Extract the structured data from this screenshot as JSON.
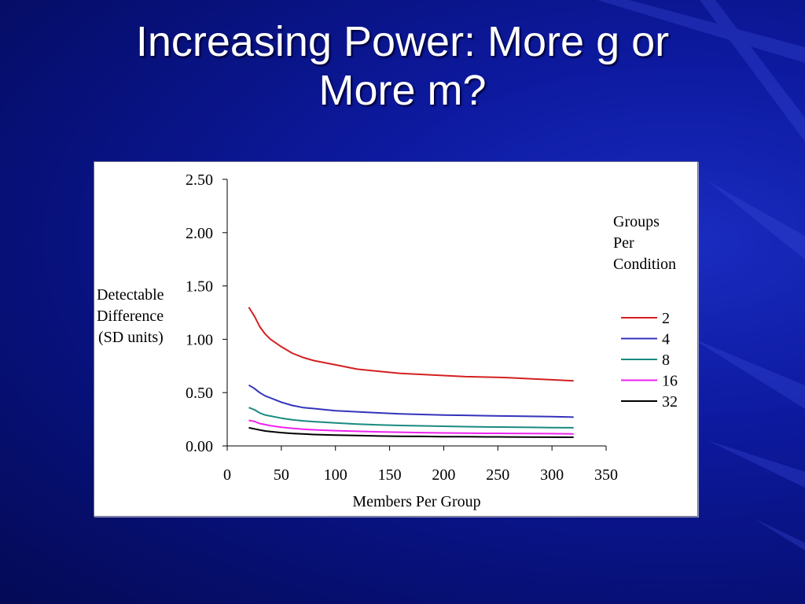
{
  "slide": {
    "title_line1": "Increasing Power: More g or",
    "title_line2": "More m?"
  },
  "chart_data": {
    "type": "line",
    "xlabel": "Members Per Group",
    "ylabel_lines": [
      "Detectable",
      "Difference",
      "(SD units)"
    ],
    "legend_title_lines": [
      "Groups",
      "Per",
      "Condition"
    ],
    "xlim": [
      0,
      350
    ],
    "ylim": [
      0,
      2.5
    ],
    "x_ticks": [
      "0",
      "50",
      "100",
      "150",
      "200",
      "250",
      "300",
      "350"
    ],
    "y_ticks": [
      "0.00",
      "0.50",
      "1.00",
      "1.50",
      "2.00",
      "2.50"
    ],
    "x": [
      20,
      25,
      30,
      35,
      40,
      50,
      60,
      70,
      80,
      100,
      120,
      140,
      160,
      180,
      200,
      220,
      240,
      260,
      280,
      300,
      320
    ],
    "series": [
      {
        "name": "2",
        "color": "#d42020",
        "values": [
          1.3,
          1.22,
          1.12,
          1.05,
          1.0,
          0.93,
          0.87,
          0.83,
          0.8,
          0.76,
          0.72,
          0.7,
          0.68,
          0.67,
          0.66,
          0.65,
          0.645,
          0.64,
          0.63,
          0.62,
          0.61
        ]
      },
      {
        "name": "4",
        "color": "#3333bb",
        "values": [
          0.57,
          0.54,
          0.5,
          0.47,
          0.45,
          0.41,
          0.38,
          0.36,
          0.35,
          0.33,
          0.32,
          0.31,
          0.3,
          0.295,
          0.29,
          0.287,
          0.283,
          0.28,
          0.277,
          0.274,
          0.27
        ]
      },
      {
        "name": "8",
        "color": "#1a8a80",
        "values": [
          0.36,
          0.34,
          0.31,
          0.29,
          0.28,
          0.26,
          0.245,
          0.235,
          0.228,
          0.215,
          0.205,
          0.198,
          0.192,
          0.188,
          0.184,
          0.181,
          0.178,
          0.176,
          0.174,
          0.172,
          0.17
        ]
      },
      {
        "name": "16",
        "color": "#ee22ee",
        "values": [
          0.24,
          0.23,
          0.21,
          0.2,
          0.19,
          0.175,
          0.165,
          0.157,
          0.151,
          0.143,
          0.137,
          0.132,
          0.128,
          0.125,
          0.122,
          0.12,
          0.118,
          0.117,
          0.116,
          0.115,
          0.113
        ]
      },
      {
        "name": "32",
        "color": "#000000",
        "values": [
          0.17,
          0.16,
          0.15,
          0.14,
          0.135,
          0.125,
          0.117,
          0.112,
          0.107,
          0.101,
          0.097,
          0.093,
          0.091,
          0.089,
          0.087,
          0.086,
          0.085,
          0.084,
          0.083,
          0.082,
          0.081
        ]
      }
    ]
  }
}
